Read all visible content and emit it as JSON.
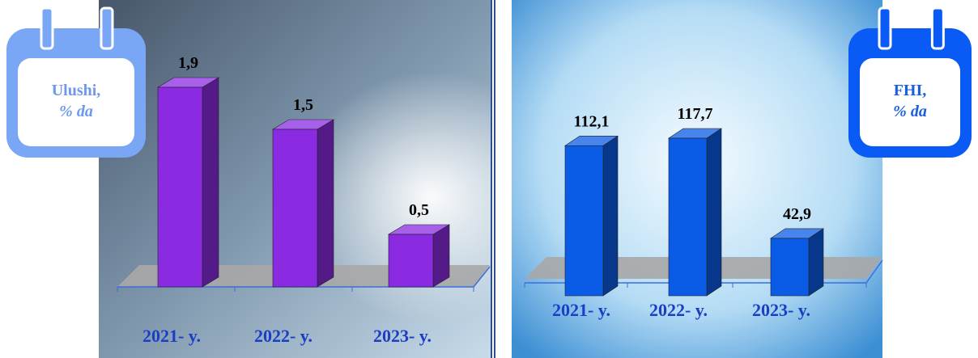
{
  "chart_data": [
    {
      "type": "bar3d",
      "title_lines": [
        "Ulushi,",
        "% da"
      ],
      "categories": [
        "2021- y.",
        "2022- y.",
        "2023- y."
      ],
      "values": [
        1.9,
        1.5,
        0.5
      ],
      "value_labels": [
        "1,9",
        "1,5",
        "0,5"
      ],
      "color": "#8a2be2"
    },
    {
      "type": "bar3d",
      "title_lines": [
        "FHI,",
        "% da"
      ],
      "categories": [
        "2021- y.",
        "2022- y.",
        "2023- y."
      ],
      "values": [
        112.1,
        117.7,
        42.9
      ],
      "value_labels": [
        "112,1",
        "117,7",
        "42,9"
      ],
      "color": "#0a5ce6"
    }
  ]
}
